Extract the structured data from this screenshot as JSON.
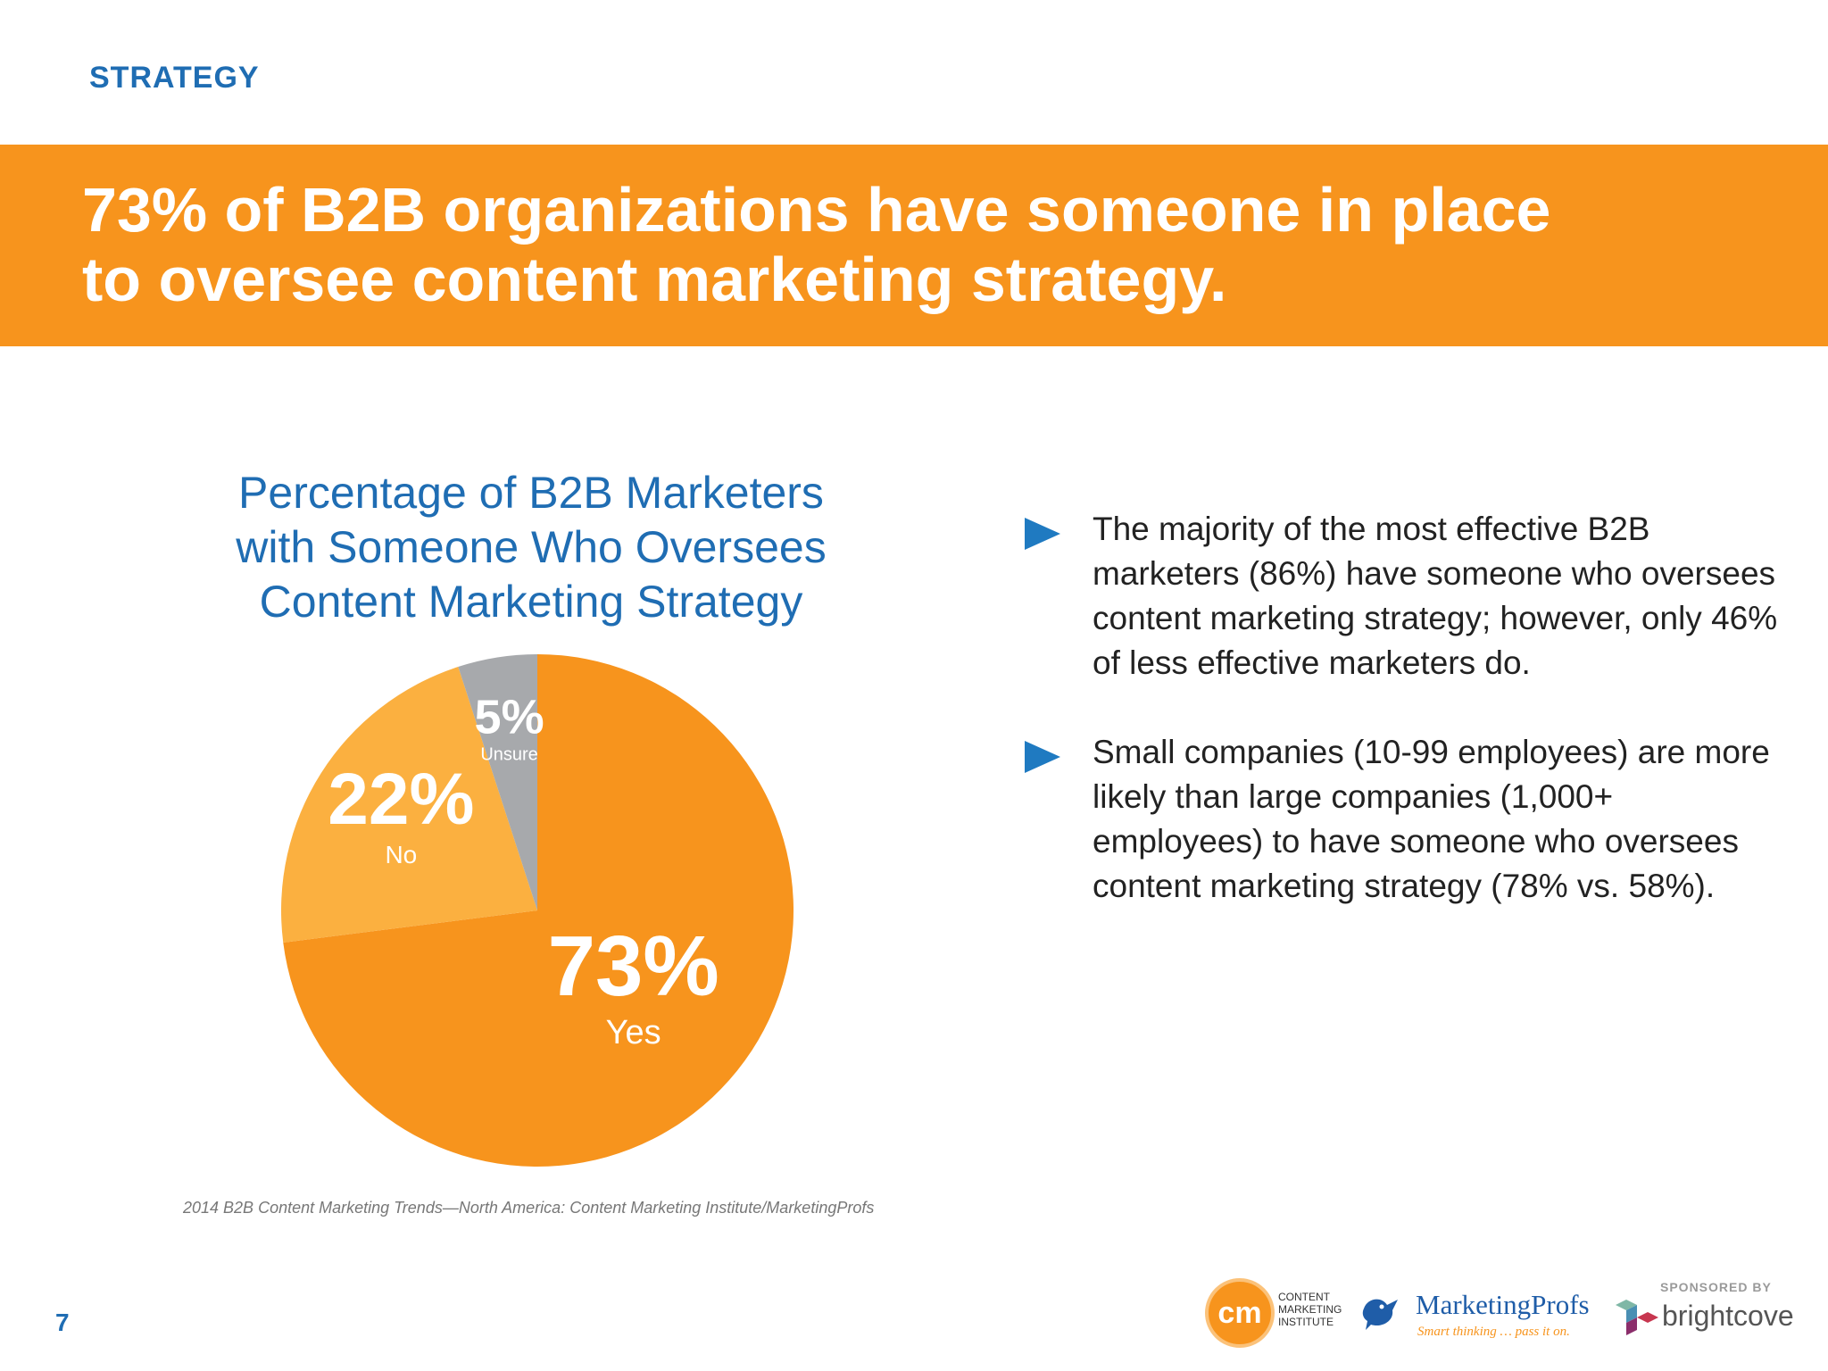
{
  "section_label": "STRATEGY",
  "headline": {
    "line1": "73% of B2B organizations have someone in place",
    "line2": "to oversee content marketing strategy."
  },
  "chart_data": {
    "type": "pie",
    "title": "Percentage of B2B Marketers with Someone Who Oversees Content Marketing Strategy",
    "title_lines": [
      "Percentage of B2B Marketers",
      "with Someone Who Oversees",
      "Content Marketing Strategy"
    ],
    "slices": [
      {
        "label": "Yes",
        "value": 73,
        "display": "73%",
        "color": "#f7941d"
      },
      {
        "label": "No",
        "value": 22,
        "display": "22%",
        "color": "#fbb040"
      },
      {
        "label": "Unsure",
        "value": 5,
        "display": "5%",
        "color": "#a7a9ac"
      }
    ]
  },
  "source": "2014 B2B Content Marketing Trends—North America: Content Marketing Institute/MarketingProfs",
  "bullets": [
    {
      "text": "The majority of the most effective B2B marketers (86%) have someone who oversees content marketing strategy; however, only 46% of less effective marketers do."
    },
    {
      "text": "Small companies (10-99 employees) are more likely than large companies (1,000+ employees) to have someone who oversees content marketing strategy (78% vs. 58%)."
    }
  ],
  "page_number": "7",
  "footer": {
    "cmi": {
      "monogram": "cm",
      "lines": [
        "CONTENT",
        "MARKETING",
        "INSTITUTE"
      ]
    },
    "marketingprofs": {
      "name": "MarketingProfs",
      "tagline": "Smart thinking … pass it on."
    },
    "sponsored_by": "SPONSORED BY",
    "brightcove": "brightcove"
  },
  "colors": {
    "accent_orange": "#f7941d",
    "brand_blue": "#1f6db3",
    "bullet_blue": "#1f7ac1"
  }
}
